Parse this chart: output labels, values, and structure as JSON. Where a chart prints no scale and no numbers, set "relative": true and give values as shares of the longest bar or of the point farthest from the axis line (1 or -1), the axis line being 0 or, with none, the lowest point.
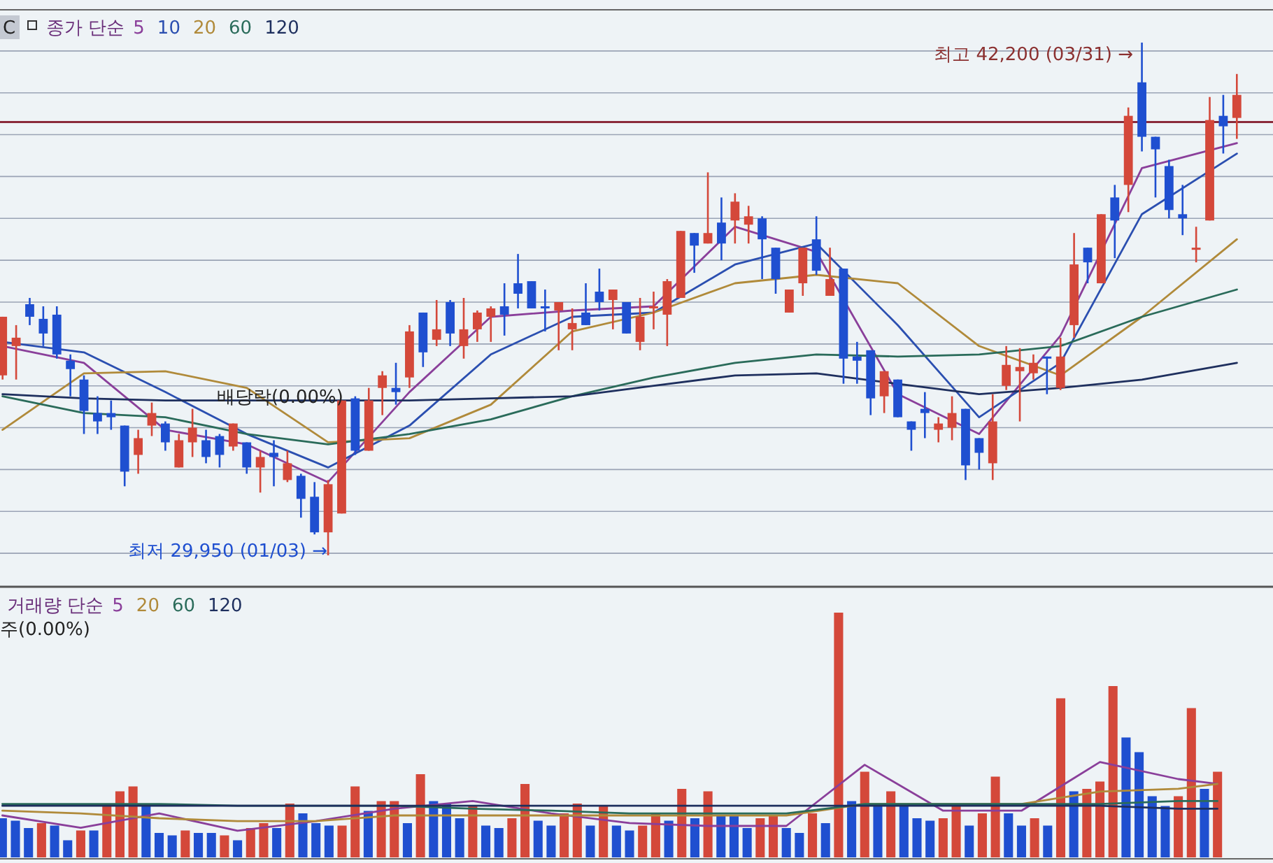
{
  "chart_data": [
    {
      "type": "candlestick",
      "categories": [
        null,
        null,
        null,
        null,
        null,
        null,
        null,
        null,
        null,
        null,
        null,
        null,
        null,
        null,
        null,
        null,
        null,
        null,
        null,
        null,
        null,
        null,
        null,
        null,
        null,
        null,
        null,
        null,
        null,
        null,
        null,
        null,
        null,
        null,
        null,
        null,
        null,
        null,
        null,
        null,
        null,
        null,
        null,
        null,
        null,
        null,
        null,
        null,
        null,
        null,
        null,
        null,
        null,
        null,
        null,
        null,
        null,
        null,
        null,
        null,
        null,
        null,
        null,
        null,
        null,
        null,
        null,
        null,
        null,
        null,
        null,
        null,
        null,
        null,
        null,
        null,
        null,
        null,
        null,
        null,
        null,
        null,
        null,
        null,
        null,
        null,
        null,
        null,
        null,
        null,
        null,
        null
      ],
      "ohlc": [
        [
          34250,
          35650,
          34150,
          35650
        ],
        [
          34950,
          35450,
          34150,
          35150
        ],
        [
          35950,
          36100,
          35450,
          35650
        ],
        [
          35600,
          35900,
          34950,
          35250
        ],
        [
          35700,
          35900,
          34650,
          34750
        ],
        [
          34600,
          34750,
          33750,
          34400
        ],
        [
          34150,
          34250,
          32850,
          33400
        ],
        [
          33350,
          33750,
          32850,
          33150
        ],
        [
          33350,
          33650,
          32950,
          33250
        ],
        [
          33050,
          33050,
          31600,
          31950
        ],
        [
          32350,
          32950,
          31900,
          32750
        ],
        [
          33050,
          33600,
          32800,
          33350
        ],
        [
          33100,
          33150,
          32450,
          32650
        ],
        [
          32050,
          32850,
          32050,
          32700
        ],
        [
          32650,
          33450,
          32300,
          33000
        ],
        [
          32700,
          32950,
          32150,
          32300
        ],
        [
          32800,
          32850,
          32050,
          32350
        ],
        [
          32550,
          33100,
          32450,
          33100
        ],
        [
          32650,
          32650,
          31900,
          32050
        ],
        [
          32050,
          32450,
          31450,
          32300
        ],
        [
          32400,
          32700,
          31600,
          32300
        ],
        [
          31750,
          32450,
          31700,
          32150
        ],
        [
          31850,
          31900,
          30850,
          31300
        ],
        [
          31350,
          31700,
          30450,
          30500
        ],
        [
          30500,
          31750,
          29950,
          31650
        ],
        [
          30950,
          33650,
          30950,
          33650
        ],
        [
          33700,
          33750,
          32350,
          32450
        ],
        [
          32450,
          33950,
          32450,
          33650
        ],
        [
          33950,
          34350,
          33300,
          34250
        ],
        [
          33950,
          34550,
          33550,
          33850
        ],
        [
          34200,
          35450,
          33950,
          35300
        ],
        [
          35750,
          35750,
          34450,
          34800
        ],
        [
          35100,
          36050,
          34950,
          35350
        ],
        [
          36000,
          36050,
          34950,
          35250
        ],
        [
          34950,
          36100,
          34650,
          35350
        ],
        [
          35350,
          35800,
          35050,
          35750
        ],
        [
          35650,
          35900,
          35050,
          35850
        ],
        [
          35900,
          36450,
          35200,
          35700
        ],
        [
          36450,
          37150,
          35850,
          36200
        ],
        [
          36500,
          36500,
          35850,
          35850
        ],
        [
          35900,
          36300,
          35300,
          35850
        ],
        [
          35800,
          36000,
          34850,
          36000
        ],
        [
          35350,
          35850,
          34850,
          35500
        ],
        [
          35750,
          36450,
          35450,
          35450
        ],
        [
          36250,
          36800,
          35800,
          36000
        ],
        [
          36050,
          36300,
          35350,
          36300
        ],
        [
          36000,
          36000,
          35250,
          35250
        ],
        [
          35050,
          36100,
          34850,
          35650
        ],
        [
          35850,
          36250,
          35350,
          35900
        ],
        [
          35700,
          36550,
          34950,
          36500
        ],
        [
          36100,
          37700,
          36100,
          37700
        ],
        [
          37650,
          37650,
          36700,
          37350
        ],
        [
          37400,
          39100,
          37400,
          37650
        ],
        [
          37900,
          38500,
          37000,
          37400
        ],
        [
          37950,
          38600,
          37400,
          38400
        ],
        [
          37850,
          38300,
          37400,
          38050
        ],
        [
          38000,
          38050,
          36550,
          37500
        ],
        [
          37300,
          37300,
          36200,
          36550
        ],
        [
          35750,
          36300,
          35750,
          36300
        ],
        [
          36450,
          37300,
          36150,
          37300
        ],
        [
          37500,
          38050,
          36650,
          36750
        ],
        [
          36150,
          37300,
          36150,
          36550
        ],
        [
          36800,
          36800,
          34050,
          34650
        ],
        [
          34700,
          35050,
          34050,
          34600
        ],
        [
          34850,
          34850,
          33300,
          33700
        ],
        [
          33750,
          34350,
          33350,
          34350
        ],
        [
          34150,
          34150,
          33250,
          33250
        ],
        [
          33150,
          33150,
          32450,
          32950
        ],
        [
          33450,
          33850,
          32750,
          33350
        ],
        [
          32950,
          33250,
          32650,
          33100
        ],
        [
          33000,
          33750,
          32700,
          33350
        ],
        [
          33450,
          33450,
          31750,
          32100
        ],
        [
          32750,
          32750,
          32000,
          32400
        ],
        [
          32150,
          33800,
          31750,
          33150
        ],
        [
          34000,
          34950,
          33900,
          34500
        ],
        [
          34350,
          34900,
          33150,
          34450
        ],
        [
          34300,
          34750,
          34150,
          34550
        ],
        [
          34700,
          34700,
          33800,
          34650
        ],
        [
          33950,
          35150,
          33900,
          34700
        ],
        [
          35450,
          37650,
          35150,
          36900
        ],
        [
          37300,
          37300,
          36450,
          36950
        ],
        [
          36450,
          38100,
          36450,
          38100
        ],
        [
          38500,
          38800,
          37050,
          37950
        ],
        [
          38800,
          40650,
          38150,
          40450
        ],
        [
          41250,
          42200,
          39600,
          39950
        ],
        [
          39950,
          39950,
          38500,
          39650
        ],
        [
          39250,
          39400,
          38000,
          38200
        ],
        [
          38100,
          38800,
          37600,
          38000
        ],
        [
          37250,
          37800,
          36950,
          37300
        ],
        [
          37950,
          40900,
          37950,
          40350
        ],
        [
          40450,
          40950,
          39550,
          40200
        ],
        [
          40400,
          41450,
          39900,
          40950
        ]
      ],
      "colors": [
        "#d4483a",
        "#d4483a",
        "#1f4fd0",
        "#1f4fd0",
        "#1f4fd0",
        "#1f4fd0",
        "#1f4fd0",
        "#1f4fd0",
        "#1f4fd0",
        "#1f4fd0",
        "#d4483a",
        "#d4483a",
        "#1f4fd0",
        "#d4483a",
        "#d4483a",
        "#1f4fd0",
        "#1f4fd0",
        "#d4483a",
        "#1f4fd0",
        "#d4483a",
        "#1f4fd0",
        "#d4483a",
        "#1f4fd0",
        "#1f4fd0",
        "#d4483a",
        "#d4483a",
        "#1f4fd0",
        "#d4483a",
        "#d4483a",
        "#1f4fd0",
        "#d4483a",
        "#1f4fd0",
        "#d4483a",
        "#1f4fd0",
        "#d4483a",
        "#d4483a",
        "#d4483a",
        "#1f4fd0",
        "#1f4fd0",
        "#1f4fd0",
        "#1f4fd0",
        "#d4483a",
        "#d4483a",
        "#1f4fd0",
        "#1f4fd0",
        "#d4483a",
        "#1f4fd0",
        "#d4483a",
        "#d4483a",
        "#d4483a",
        "#d4483a",
        "#1f4fd0",
        "#d4483a",
        "#1f4fd0",
        "#d4483a",
        "#d4483a",
        "#1f4fd0",
        "#1f4fd0",
        "#d4483a",
        "#d4483a",
        "#1f4fd0",
        "#d4483a",
        "#1f4fd0",
        "#1f4fd0",
        "#1f4fd0",
        "#d4483a",
        "#1f4fd0",
        "#1f4fd0",
        "#1f4fd0",
        "#d4483a",
        "#d4483a",
        "#1f4fd0",
        "#1f4fd0",
        "#d4483a",
        "#d4483a",
        "#d4483a",
        "#d4483a",
        "#1f4fd0",
        "#d4483a",
        "#d4483a",
        "#1f4fd0",
        "#d4483a",
        "#1f4fd0",
        "#d4483a",
        "#1f4fd0",
        "#1f4fd0",
        "#1f4fd0",
        "#1f4fd0",
        "#d4483a",
        "#d4483a",
        "#1f4fd0",
        "#d4483a"
      ],
      "series": [
        {
          "name": "5",
          "type": "line",
          "color": "#8a3f9a",
          "values": [
            34950,
            null,
            null,
            null,
            null,
            null,
            34550,
            null,
            null,
            null,
            null,
            null,
            32950,
            null,
            null,
            null,
            null,
            null,
            32600,
            null,
            null,
            null,
            null,
            null,
            31700,
            null,
            null,
            null,
            null,
            null,
            33850,
            null,
            null,
            null,
            null,
            null,
            35650,
            null,
            null,
            null,
            null,
            null,
            35800,
            null,
            null,
            null,
            null,
            null,
            35900,
            null,
            null,
            null,
            null,
            null,
            37800,
            null,
            null,
            null,
            null,
            null,
            37200,
            null,
            null,
            null,
            null,
            null,
            33800,
            null,
            null,
            null,
            null,
            null,
            32850,
            null,
            null,
            null,
            null,
            null,
            35200,
            null,
            null,
            null,
            null,
            null,
            39200,
            null,
            null,
            null,
            null,
            null,
            null,
            39800
          ]
        },
        {
          "name": "10",
          "type": "line",
          "color": "#2b4fb0",
          "values": [
            35050,
            null,
            null,
            null,
            null,
            null,
            34800,
            null,
            null,
            null,
            null,
            null,
            33850,
            null,
            null,
            null,
            null,
            null,
            32850,
            null,
            null,
            null,
            null,
            null,
            32050,
            null,
            null,
            null,
            null,
            null,
            33050,
            null,
            null,
            null,
            null,
            null,
            34750,
            null,
            null,
            null,
            null,
            null,
            35650,
            null,
            null,
            null,
            null,
            null,
            35750,
            null,
            null,
            null,
            null,
            null,
            36900,
            null,
            null,
            null,
            null,
            null,
            37400,
            null,
            null,
            null,
            null,
            null,
            35450,
            null,
            null,
            null,
            null,
            null,
            33250,
            null,
            null,
            null,
            null,
            null,
            34550,
            null,
            null,
            null,
            null,
            null,
            38100,
            null,
            null,
            null,
            null,
            null,
            null,
            39550
          ]
        },
        {
          "name": "20",
          "type": "line",
          "color": "#b08a3a",
          "values": [
            32950,
            null,
            null,
            null,
            null,
            null,
            34300,
            null,
            null,
            null,
            null,
            null,
            34350,
            null,
            null,
            null,
            null,
            null,
            33950,
            null,
            null,
            null,
            null,
            null,
            32650,
            null,
            null,
            null,
            null,
            null,
            32750,
            null,
            null,
            null,
            null,
            null,
            33550,
            null,
            null,
            null,
            null,
            null,
            35300,
            null,
            null,
            null,
            null,
            null,
            35750,
            null,
            null,
            null,
            null,
            null,
            36450,
            null,
            null,
            null,
            null,
            null,
            36650,
            null,
            null,
            null,
            null,
            null,
            36450,
            null,
            null,
            null,
            null,
            null,
            34950,
            null,
            null,
            null,
            null,
            null,
            34250,
            null,
            null,
            null,
            null,
            null,
            35650,
            null,
            null,
            null,
            null,
            null,
            null,
            37500
          ]
        },
        {
          "name": "60",
          "type": "line",
          "color": "#2a6b5a",
          "values": [
            33750,
            null,
            null,
            null,
            null,
            null,
            33350,
            null,
            null,
            null,
            null,
            null,
            33250,
            null,
            null,
            null,
            null,
            null,
            32850,
            null,
            null,
            null,
            null,
            null,
            32600,
            null,
            null,
            null,
            null,
            null,
            32850,
            null,
            null,
            null,
            null,
            null,
            33200,
            null,
            null,
            null,
            null,
            null,
            33750,
            null,
            null,
            null,
            null,
            null,
            34200,
            null,
            null,
            null,
            null,
            null,
            34550,
            null,
            null,
            null,
            null,
            null,
            34750,
            null,
            null,
            null,
            null,
            null,
            34700,
            null,
            null,
            null,
            null,
            null,
            34750,
            null,
            null,
            null,
            null,
            null,
            34950,
            null,
            null,
            null,
            null,
            null,
            35650,
            null,
            null,
            null,
            null,
            null,
            null,
            36300
          ]
        },
        {
          "name": "120",
          "type": "line",
          "color": "#1e2f5e",
          "values": [
            33800,
            null,
            null,
            null,
            null,
            null,
            33700,
            null,
            null,
            null,
            null,
            null,
            33650,
            null,
            null,
            null,
            null,
            null,
            33650,
            null,
            null,
            null,
            null,
            null,
            33650,
            null,
            null,
            null,
            null,
            null,
            33650,
            null,
            null,
            null,
            null,
            null,
            33700,
            null,
            null,
            null,
            null,
            null,
            33750,
            null,
            null,
            null,
            null,
            null,
            34000,
            null,
            null,
            null,
            null,
            null,
            34250,
            null,
            null,
            null,
            null,
            null,
            34300,
            null,
            null,
            null,
            null,
            null,
            34050,
            null,
            null,
            null,
            null,
            null,
            33800,
            null,
            null,
            null,
            null,
            null,
            33950,
            null,
            null,
            null,
            null,
            null,
            34150,
            null,
            null,
            null,
            null,
            null,
            null,
            34550
          ]
        }
      ],
      "ylim": [
        29250,
        42950
      ],
      "yticks": [
        {
          "value": 30000,
          "label": null
        },
        {
          "value": 31000,
          "label": null
        },
        {
          "value": 32000,
          "label": null
        },
        {
          "value": 33000,
          "label": null
        },
        {
          "value": 34000,
          "label": null
        },
        {
          "value": 35000,
          "label": null
        },
        {
          "value": 36000,
          "label": null
        },
        {
          "value": 37000,
          "label": null
        },
        {
          "value": 38000,
          "label": null
        },
        {
          "value": 39000,
          "label": null
        },
        {
          "value": 40000,
          "label": null
        },
        {
          "value": 41000,
          "label": null
        },
        {
          "value": 42000,
          "label": null
        }
      ],
      "grid": "y",
      "legend_title": "종가 단순",
      "ref_lines": [
        {
          "axis": "y",
          "value": 40300,
          "color": "#8b2a3a"
        }
      ],
      "annotations": [
        "최고 42,200 (03/31) →",
        "최저 29,950 (01/03) →",
        "배당락(0.00%)",
        "C"
      ]
    },
    {
      "type": "bar",
      "relative": true,
      "categories": [
        null,
        null,
        null,
        null,
        null,
        null,
        null,
        null,
        null,
        null,
        null,
        null,
        null,
        null,
        null,
        null,
        null,
        null,
        null,
        null,
        null,
        null,
        null,
        null,
        null,
        null,
        null,
        null,
        null,
        null,
        null,
        null,
        null,
        null,
        null,
        null,
        null,
        null,
        null,
        null,
        null,
        null,
        null,
        null,
        null,
        null,
        null,
        null,
        null,
        null,
        null,
        null,
        null,
        null,
        null,
        null,
        null,
        null,
        null,
        null,
        null,
        null,
        null,
        null,
        null,
        null,
        null,
        null,
        null,
        null,
        null,
        null,
        null,
        null,
        null,
        null,
        null,
        null,
        null,
        null,
        null,
        null,
        null,
        null,
        null,
        null,
        null,
        null,
        null,
        null,
        null,
        null,
        null,
        null
      ],
      "values": [
        0.16,
        0.15,
        0.12,
        0.14,
        0.13,
        0.07,
        0.11,
        0.11,
        0.21,
        0.27,
        0.29,
        0.21,
        0.1,
        0.09,
        0.11,
        0.1,
        0.1,
        0.09,
        0.07,
        0.12,
        0.14,
        0.12,
        0.22,
        0.18,
        0.14,
        0.13,
        0.13,
        0.29,
        0.19,
        0.23,
        0.23,
        0.14,
        0.34,
        0.23,
        0.22,
        0.16,
        0.21,
        0.13,
        0.12,
        0.16,
        0.3,
        0.15,
        0.13,
        0.18,
        0.22,
        0.13,
        0.21,
        0.13,
        0.11,
        0.13,
        0.18,
        0.15,
        0.28,
        0.16,
        0.27,
        0.17,
        0.17,
        0.12,
        0.16,
        0.17,
        0.12,
        0.1,
        0.18,
        0.14,
        1,
        0.23,
        0.35,
        0.22,
        0.27,
        0.22,
        0.16,
        0.15,
        0.16,
        0.21,
        0.13,
        0.18,
        0.33,
        0.18,
        0.13,
        0.16,
        0.13,
        0.65,
        0.27,
        0.28,
        0.31,
        0.7,
        0.49,
        0.43,
        0.25,
        0.21,
        0.25,
        0.61,
        0.28,
        0.35
      ],
      "colors": [
        "#1f4fd0",
        "#1f4fd0",
        "#1f4fd0",
        "#d4483a",
        "#1f4fd0",
        "#1f4fd0",
        "#d4483a",
        "#1f4fd0",
        "#d4483a",
        "#d4483a",
        "#d4483a",
        "#1f4fd0",
        "#1f4fd0",
        "#1f4fd0",
        "#d4483a",
        "#1f4fd0",
        "#1f4fd0",
        "#d4483a",
        "#1f4fd0",
        "#d4483a",
        "#d4483a",
        "#1f4fd0",
        "#d4483a",
        "#1f4fd0",
        "#1f4fd0",
        "#1f4fd0",
        "#d4483a",
        "#d4483a",
        "#1f4fd0",
        "#d4483a",
        "#d4483a",
        "#1f4fd0",
        "#d4483a",
        "#1f4fd0",
        "#1f4fd0",
        "#1f4fd0",
        "#d4483a",
        "#1f4fd0",
        "#1f4fd0",
        "#d4483a",
        "#d4483a",
        "#1f4fd0",
        "#1f4fd0",
        "#d4483a",
        "#d4483a",
        "#1f4fd0",
        "#d4483a",
        "#1f4fd0",
        "#1f4fd0",
        "#d4483a",
        "#d4483a",
        "#1f4fd0",
        "#d4483a",
        "#1f4fd0",
        "#d4483a",
        "#1f4fd0",
        "#1f4fd0",
        "#1f4fd0",
        "#d4483a",
        "#d4483a",
        "#1f4fd0",
        "#1f4fd0",
        "#d4483a",
        "#1f4fd0",
        "#d4483a",
        "#1f4fd0",
        "#d4483a",
        "#1f4fd0",
        "#d4483a",
        "#1f4fd0",
        "#1f4fd0",
        "#1f4fd0",
        "#d4483a",
        "#d4483a",
        "#1f4fd0",
        "#d4483a",
        "#d4483a",
        "#1f4fd0",
        "#1f4fd0",
        "#d4483a",
        "#1f4fd0",
        "#d4483a",
        "#1f4fd0",
        "#d4483a",
        "#d4483a",
        "#d4483a",
        "#1f4fd0",
        "#1f4fd0",
        "#1f4fd0",
        "#1f4fd0",
        "#d4483a",
        "#d4483a",
        "#1f4fd0",
        "#d4483a"
      ],
      "annotations": [
        "주(0.00%)"
      ]
    },
    {
      "type": "line",
      "relative": true,
      "categories": [
        null,
        null,
        null,
        null,
        null,
        null,
        null,
        null,
        null,
        null,
        null,
        null,
        null,
        null,
        null,
        null,
        null,
        null,
        null,
        null,
        null,
        null,
        null,
        null,
        null,
        null,
        null,
        null,
        null,
        null,
        null,
        null,
        null,
        null,
        null,
        null,
        null,
        null,
        null,
        null,
        null,
        null,
        null,
        null,
        null,
        null,
        null,
        null,
        null,
        null,
        null,
        null,
        null,
        null,
        null,
        null,
        null,
        null,
        null,
        null,
        null,
        null,
        null,
        null,
        null,
        null,
        null,
        null,
        null,
        null,
        null,
        null,
        null,
        null,
        null,
        null,
        null,
        null,
        null,
        null,
        null,
        null,
        null,
        null,
        null,
        null,
        null,
        null,
        null,
        null,
        null,
        null,
        null,
        null
      ],
      "legend_title": "거래량 단순",
      "series": [
        {
          "name": "5",
          "color": "#8a3f9a",
          "values": [
            0.44,
            null,
            null,
            null,
            null,
            null,
            0.31,
            null,
            null,
            null,
            null,
            null,
            0.46,
            null,
            null,
            null,
            null,
            null,
            0.28,
            null,
            null,
            null,
            null,
            null,
            0.38,
            null,
            null,
            null,
            null,
            null,
            0.51,
            null,
            null,
            null,
            null,
            null,
            0.59,
            null,
            null,
            null,
            null,
            null,
            0.46,
            null,
            null,
            null,
            null,
            null,
            0.36,
            null,
            null,
            null,
            null,
            null,
            0.33,
            null,
            null,
            null,
            null,
            null,
            0.33,
            null,
            null,
            null,
            null,
            null,
            0.97,
            null,
            null,
            null,
            null,
            null,
            0.49,
            null,
            null,
            null,
            null,
            null,
            0.49,
            null,
            null,
            null,
            null,
            null,
            1,
            null,
            null,
            null,
            null,
            null,
            0.82,
            null,
            null,
            0.77
          ]
        },
        {
          "name": "20",
          "color": "#b08a3a",
          "values": [
            0.49,
            null,
            null,
            null,
            null,
            null,
            0.46,
            null,
            null,
            null,
            null,
            null,
            0.41,
            null,
            null,
            null,
            null,
            null,
            0.38,
            null,
            null,
            null,
            null,
            null,
            0.38,
            null,
            null,
            null,
            null,
            null,
            0.44,
            null,
            null,
            null,
            null,
            null,
            0.44,
            null,
            null,
            null,
            null,
            null,
            0.44,
            null,
            null,
            null,
            null,
            null,
            0.44,
            null,
            null,
            null,
            null,
            null,
            0.44,
            null,
            null,
            null,
            null,
            null,
            0.44,
            null,
            null,
            null,
            null,
            null,
            0.56,
            null,
            null,
            null,
            null,
            null,
            0.56,
            null,
            null,
            null,
            null,
            null,
            0.56,
            null,
            null,
            null,
            null,
            null,
            0.69,
            null,
            null,
            null,
            null,
            null,
            0.72,
            null,
            null,
            0.77
          ]
        },
        {
          "name": "60",
          "color": "#2a6b5a",
          "values": [
            0.56,
            null,
            null,
            null,
            null,
            null,
            0.56,
            null,
            null,
            null,
            null,
            null,
            0.56,
            null,
            null,
            null,
            null,
            null,
            0.54,
            null,
            null,
            null,
            null,
            null,
            0.54,
            null,
            null,
            null,
            null,
            null,
            0.54,
            null,
            null,
            null,
            null,
            null,
            0.51,
            null,
            null,
            null,
            null,
            null,
            0.49,
            null,
            null,
            null,
            null,
            null,
            0.46,
            null,
            null,
            null,
            null,
            null,
            0.46,
            null,
            null,
            null,
            null,
            null,
            0.46,
            null,
            null,
            null,
            null,
            null,
            0.56,
            null,
            null,
            null,
            null,
            null,
            0.56,
            null,
            null,
            null,
            null,
            null,
            0.56,
            null,
            null,
            null,
            null,
            null,
            0.56,
            null,
            null,
            null,
            null,
            null,
            0.59,
            null,
            null,
            0.59
          ]
        },
        {
          "name": "120",
          "color": "#1e2f5e",
          "values": [
            0.54,
            null,
            null,
            null,
            null,
            null,
            0.54,
            null,
            null,
            null,
            null,
            null,
            0.54,
            null,
            null,
            null,
            null,
            null,
            0.54,
            null,
            null,
            null,
            null,
            null,
            0.54,
            null,
            null,
            null,
            null,
            null,
            0.54,
            null,
            null,
            null,
            null,
            null,
            0.54,
            null,
            null,
            null,
            null,
            null,
            0.54,
            null,
            null,
            null,
            null,
            null,
            0.54,
            null,
            null,
            null,
            null,
            null,
            0.54,
            null,
            null,
            null,
            null,
            null,
            0.54,
            null,
            null,
            null,
            null,
            null,
            0.54,
            null,
            null,
            null,
            null,
            null,
            0.54,
            null,
            null,
            null,
            null,
            null,
            0.54,
            null,
            null,
            null,
            null,
            null,
            0.54,
            null,
            null,
            null,
            null,
            null,
            0.51,
            null,
            null,
            0.51
          ]
        }
      ]
    }
  ]
}
